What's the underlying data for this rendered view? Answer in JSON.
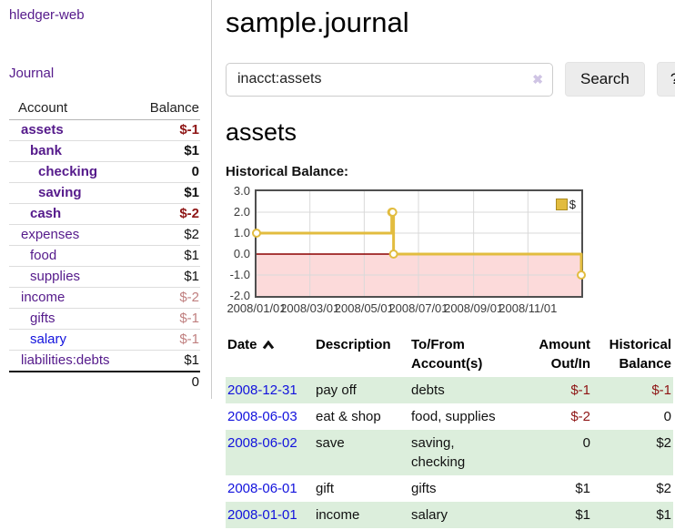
{
  "app": {
    "brand": "hledger-web"
  },
  "colors": {
    "link_purple": "#551a8b",
    "link_blue": "#1212dd",
    "negative_strong": "#8e1515",
    "negative_soft": "#c08080",
    "row_stripe_green": "#dceedc",
    "series_gold": "#e2bc3f"
  },
  "sidebar": {
    "journal_link": "Journal",
    "accounts_table": {
      "headers": {
        "account": "Account",
        "balance": "Balance"
      },
      "rows": [
        {
          "name": "assets",
          "balance": "$-1"
        },
        {
          "name": "bank",
          "balance": "$1"
        },
        {
          "name": "checking",
          "balance": "0"
        },
        {
          "name": "saving",
          "balance": "$1"
        },
        {
          "name": "cash",
          "balance": "$-2"
        },
        {
          "name": "expenses",
          "balance": "$2"
        },
        {
          "name": "food",
          "balance": "$1"
        },
        {
          "name": "supplies",
          "balance": "$1"
        },
        {
          "name": "income",
          "balance": "$-2"
        },
        {
          "name": "gifts",
          "balance": "$-1"
        },
        {
          "name": "salary",
          "balance": "$-1"
        },
        {
          "name": "liabilities:debts",
          "balance": "$1"
        }
      ],
      "total": "0"
    }
  },
  "header": {
    "title": "sample.journal"
  },
  "search": {
    "value": "inacct:assets",
    "clear_icon": "✖",
    "search_button": "Search",
    "help_button": "?"
  },
  "main": {
    "account_title": "assets",
    "chart_label": "Historical Balance:"
  },
  "chart_data": {
    "type": "line",
    "step": true,
    "title": "Historical Balance",
    "series": [
      {
        "name": "$",
        "color": "#e2bc3f",
        "points": [
          [
            "2008-01-01",
            1
          ],
          [
            "2008-06-01",
            2
          ],
          [
            "2008-06-02",
            2
          ],
          [
            "2008-06-03",
            0
          ],
          [
            "2008-12-31",
            -1
          ]
        ]
      }
    ],
    "x_range": [
      "2008-01-01",
      "2008-12-31"
    ],
    "x_ticks": [
      "2008/01/01",
      "2008/03/01",
      "2008/05/01",
      "2008/07/01",
      "2008/09/01",
      "2008/11/01"
    ],
    "y_ticks": [
      "3.0",
      "2.0",
      "1.0",
      "0.0",
      "-1.0",
      "-2.0"
    ],
    "ylim": [
      -2,
      3
    ],
    "grid": true,
    "legend": {
      "label": "$",
      "position": "top-right"
    },
    "negative_region_color": "#fcdada",
    "zero_line_color": "#8b0000",
    "grid_color": "#d9d9d9"
  },
  "transactions": {
    "headers": {
      "date": "Date",
      "sort": "chevron-up",
      "description": "Description",
      "accounts": "To/From Account(s)",
      "amount": "Amount Out/In",
      "balance": "Historical Balance"
    },
    "rows": [
      {
        "date": "2008-12-31",
        "description": "pay off",
        "accounts": "debts",
        "amount": "$-1",
        "balance": "$-1"
      },
      {
        "date": "2008-06-03",
        "description": "eat & shop",
        "accounts": "food, supplies",
        "amount": "$-2",
        "balance": "0"
      },
      {
        "date": "2008-06-02",
        "description": "save",
        "accounts": "saving, checking",
        "amount": "0",
        "balance": "$2"
      },
      {
        "date": "2008-06-01",
        "description": "gift",
        "accounts": "gifts",
        "amount": "$1",
        "balance": "$2"
      },
      {
        "date": "2008-01-01",
        "description": "income",
        "accounts": "salary",
        "amount": "$1",
        "balance": "$1"
      }
    ]
  }
}
